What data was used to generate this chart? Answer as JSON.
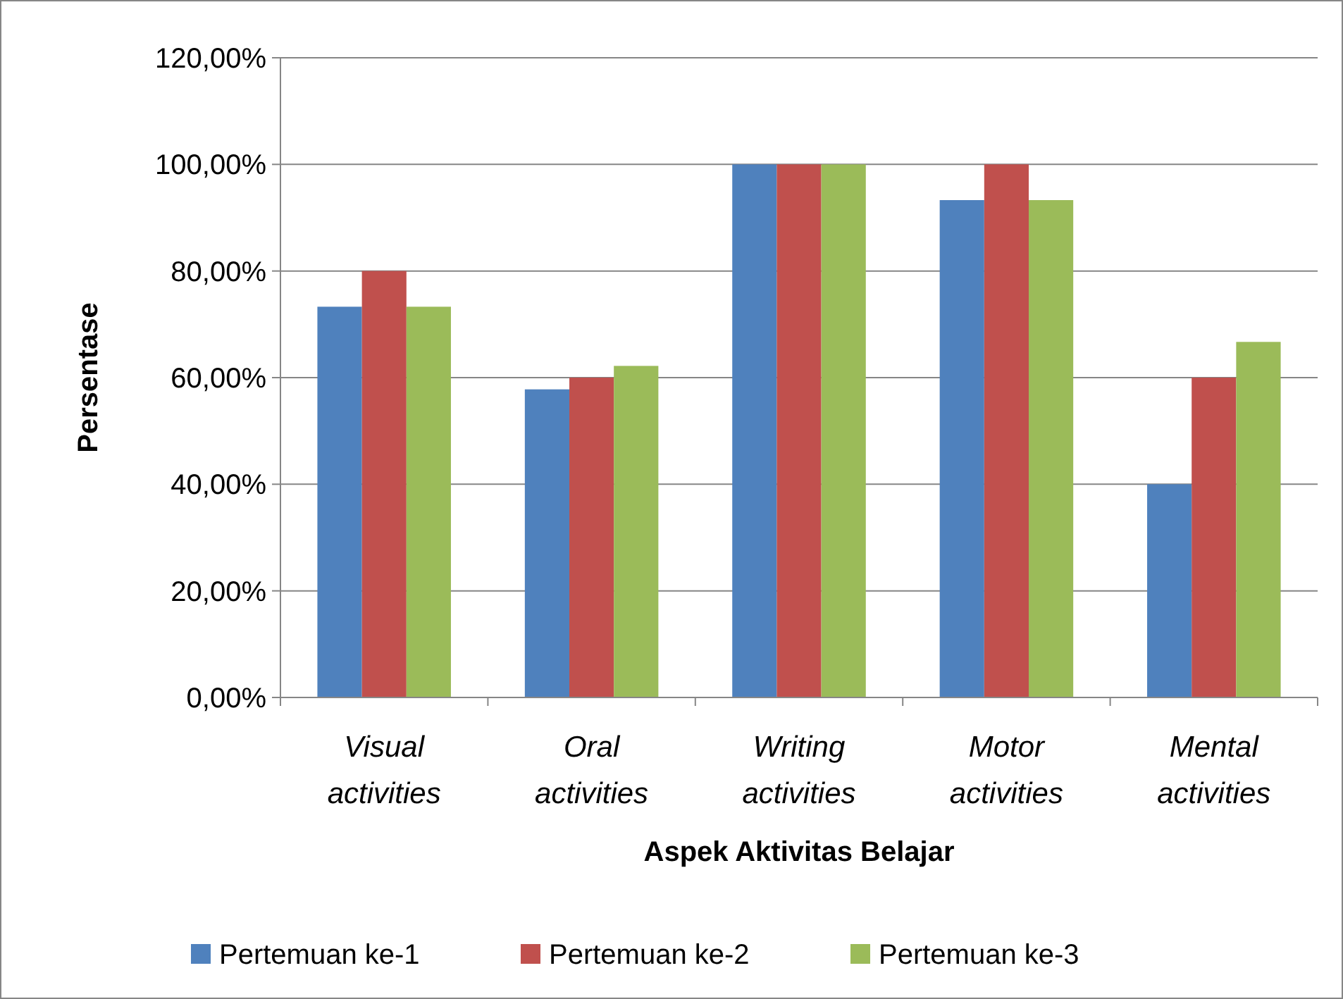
{
  "chart_data": {
    "type": "bar",
    "xlabel": "Aspek Aktivitas Belajar",
    "ylabel": "Persentase",
    "categories": [
      "Visual activities",
      "Oral activities",
      "Writing activities",
      "Motor activities",
      "Mental activities"
    ],
    "series": [
      {
        "name": "Pertemuan ke-1",
        "color": "#4f81bd",
        "values": [
          73.3,
          57.8,
          100,
          93.3,
          40
        ]
      },
      {
        "name": "Pertemuan ke-2",
        "color": "#c0504d",
        "values": [
          80,
          60,
          100,
          100,
          60
        ]
      },
      {
        "name": "Pertemuan ke-3",
        "color": "#9bbb59",
        "values": [
          73.3,
          62.2,
          100,
          93.3,
          66.7
        ]
      }
    ],
    "ylim": [
      0,
      120
    ],
    "yticks": [
      {
        "value": 0,
        "label": "0,00%"
      },
      {
        "value": 20,
        "label": "20,00%"
      },
      {
        "value": 40,
        "label": "40,00%"
      },
      {
        "value": 60,
        "label": "60,00%"
      },
      {
        "value": 80,
        "label": "80,00%"
      },
      {
        "value": 100,
        "label": "100,00%"
      },
      {
        "value": 120,
        "label": "120,00%"
      }
    ],
    "grid": "y",
    "legend": "bottom"
  }
}
